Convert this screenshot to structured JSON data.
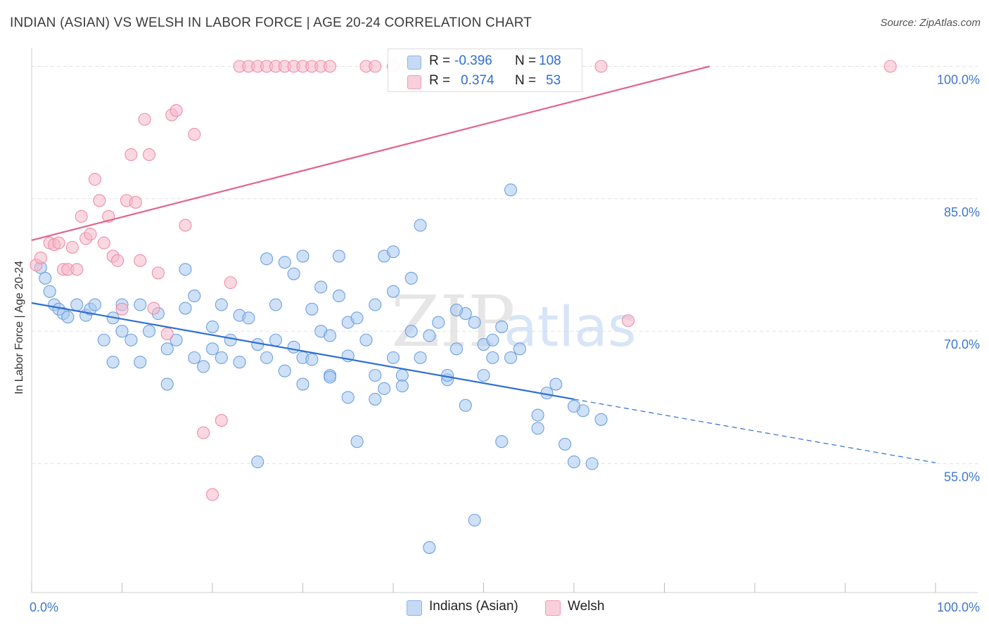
{
  "header": {
    "title": "INDIAN (ASIAN) VS WELSH IN LABOR FORCE | AGE 20-24 CORRELATION CHART",
    "source": "Source: ZipAtlas.com"
  },
  "watermark": {
    "part1": "ZIP",
    "part2": "atlas"
  },
  "legend": {
    "rows": [
      {
        "r_label": "R =",
        "r_value": "-0.396",
        "n_label": "N =",
        "n_value": "108",
        "color": "#a8c8f0"
      },
      {
        "r_label": "R =",
        "r_value": "0.374",
        "n_label": "N =",
        "n_value": "53",
        "color": "#f5b8cb"
      }
    ]
  },
  "chart_data": {
    "type": "scatter",
    "title": "INDIAN (ASIAN) VS WELSH IN LABOR FORCE | AGE 20-24 CORRELATION CHART",
    "ylabel": "In Labor Force | Age 20-24",
    "xlabel": "",
    "xlim": [
      0,
      100
    ],
    "ylim": [
      40.4,
      102.1
    ],
    "x_tick_labels": [
      {
        "value": 0,
        "label": "0.0%"
      },
      {
        "value": 100,
        "label": "100.0%"
      }
    ],
    "y_tick_labels": [
      {
        "value": 100,
        "label": "100.0%"
      },
      {
        "value": 85,
        "label": "85.0%"
      },
      {
        "value": 70,
        "label": "70.0%"
      },
      {
        "value": 55,
        "label": "55.0%"
      }
    ],
    "grid": true,
    "legend_position": "top-center",
    "series": [
      {
        "name": "Indians (Asian)",
        "color": "#6fa0e0",
        "fill": "#a8c8f0",
        "trend": {
          "x0": 0,
          "y0": 73.2,
          "x1": 60,
          "y1": 62.3,
          "dashed_to_x": 100,
          "dashed_to_y": 55.1,
          "color": "#2f6fd1"
        },
        "points": [
          [
            1,
            77.2
          ],
          [
            1.5,
            76
          ],
          [
            2,
            74.5
          ],
          [
            2.5,
            73
          ],
          [
            3,
            72.5
          ],
          [
            3.5,
            72
          ],
          [
            4,
            71.6
          ],
          [
            5,
            73
          ],
          [
            6,
            71.8
          ],
          [
            6.5,
            72.5
          ],
          [
            7,
            73
          ],
          [
            8,
            69
          ],
          [
            9,
            66.5
          ],
          [
            9,
            71.5
          ],
          [
            10,
            70
          ],
          [
            10,
            73
          ],
          [
            11,
            69
          ],
          [
            12,
            66.5
          ],
          [
            12,
            73
          ],
          [
            13,
            70
          ],
          [
            14,
            72
          ],
          [
            15,
            68
          ],
          [
            15,
            64
          ],
          [
            16,
            69
          ],
          [
            17,
            77
          ],
          [
            17,
            72.6
          ],
          [
            18,
            67
          ],
          [
            18,
            74
          ],
          [
            19,
            66
          ],
          [
            20,
            70.5
          ],
          [
            20,
            68
          ],
          [
            21,
            67
          ],
          [
            21,
            73
          ],
          [
            22,
            69
          ],
          [
            23,
            66.5
          ],
          [
            23,
            71.8
          ],
          [
            24,
            71.5
          ],
          [
            25,
            68.5
          ],
          [
            26,
            67
          ],
          [
            26,
            78.2
          ],
          [
            27,
            69
          ],
          [
            27,
            73
          ],
          [
            28,
            77.8
          ],
          [
            28,
            65.5
          ],
          [
            29,
            68.2
          ],
          [
            29,
            76.5
          ],
          [
            30,
            67
          ],
          [
            30,
            64
          ],
          [
            30,
            78.5
          ],
          [
            31,
            72.5
          ],
          [
            31,
            66.8
          ],
          [
            32,
            75
          ],
          [
            32,
            70
          ],
          [
            33,
            65
          ],
          [
            33,
            69.5
          ],
          [
            34,
            74
          ],
          [
            34,
            78.5
          ],
          [
            35,
            71
          ],
          [
            35,
            62.5
          ],
          [
            35,
            67.2
          ],
          [
            36,
            57.5
          ],
          [
            36,
            71.5
          ],
          [
            37,
            69
          ],
          [
            38,
            65
          ],
          [
            38,
            62.3
          ],
          [
            38,
            73
          ],
          [
            39,
            78.5
          ],
          [
            39,
            63.5
          ],
          [
            40,
            79
          ],
          [
            40,
            74.5
          ],
          [
            40,
            67
          ],
          [
            41,
            65
          ],
          [
            42,
            76
          ],
          [
            42,
            70
          ],
          [
            43,
            82
          ],
          [
            43,
            67
          ],
          [
            44,
            69.5
          ],
          [
            45,
            71
          ],
          [
            46,
            64.5
          ],
          [
            46,
            65
          ],
          [
            47,
            68
          ],
          [
            48,
            61.6
          ],
          [
            48,
            72
          ],
          [
            49,
            48.6
          ],
          [
            49,
            71
          ],
          [
            50,
            68.5
          ],
          [
            51,
            67
          ],
          [
            51,
            69
          ],
          [
            52,
            57.5
          ],
          [
            52,
            70.5
          ],
          [
            53,
            67
          ],
          [
            53,
            86
          ],
          [
            54,
            68
          ],
          [
            56,
            60.5
          ],
          [
            56,
            59
          ],
          [
            57,
            63
          ],
          [
            59,
            57.2
          ],
          [
            60,
            55.2
          ],
          [
            61,
            61
          ],
          [
            62,
            55
          ],
          [
            63,
            60
          ],
          [
            60,
            61.5
          ],
          [
            44,
            45.5
          ],
          [
            50,
            65
          ],
          [
            58,
            64
          ],
          [
            25,
            55.2
          ],
          [
            33,
            64.8
          ],
          [
            41,
            63.8
          ],
          [
            47,
            72.4
          ]
        ]
      },
      {
        "name": "Welsh",
        "color": "#ee8ea8",
        "fill": "#f5b8cb",
        "trend": {
          "x0": 0,
          "y0": 80.3,
          "x1": 75,
          "y1": 100,
          "color": "#e2648c"
        },
        "points": [
          [
            0.5,
            77.5
          ],
          [
            1,
            78.3
          ],
          [
            2,
            80
          ],
          [
            2.5,
            79.8
          ],
          [
            3,
            80
          ],
          [
            3.5,
            77
          ],
          [
            4,
            77
          ],
          [
            4.5,
            79.5
          ],
          [
            5,
            77
          ],
          [
            5.5,
            83
          ],
          [
            6,
            80.5
          ],
          [
            6.5,
            81
          ],
          [
            7,
            87.2
          ],
          [
            7.5,
            84.8
          ],
          [
            8,
            80
          ],
          [
            8.5,
            83
          ],
          [
            9,
            78.5
          ],
          [
            9.5,
            78
          ],
          [
            10,
            72.5
          ],
          [
            10.5,
            84.8
          ],
          [
            11,
            90
          ],
          [
            11.5,
            84.6
          ],
          [
            12,
            78
          ],
          [
            12.5,
            94
          ],
          [
            13,
            90
          ],
          [
            13.5,
            72.6
          ],
          [
            14,
            76.6
          ],
          [
            15,
            69.7
          ],
          [
            15.5,
            94.5
          ],
          [
            16,
            95
          ],
          [
            17,
            82
          ],
          [
            18,
            92.3
          ],
          [
            19,
            58.5
          ],
          [
            20,
            51.5
          ],
          [
            21,
            59.9
          ],
          [
            22,
            75.5
          ],
          [
            23,
            100
          ],
          [
            24,
            100
          ],
          [
            25,
            100
          ],
          [
            26,
            100
          ],
          [
            27,
            100
          ],
          [
            28,
            100
          ],
          [
            29,
            100
          ],
          [
            30,
            100
          ],
          [
            31,
            100
          ],
          [
            32,
            100
          ],
          [
            33,
            100
          ],
          [
            37,
            100
          ],
          [
            38,
            100
          ],
          [
            40,
            100
          ],
          [
            63,
            100
          ],
          [
            66,
            71.2
          ],
          [
            95,
            100
          ]
        ]
      }
    ]
  }
}
